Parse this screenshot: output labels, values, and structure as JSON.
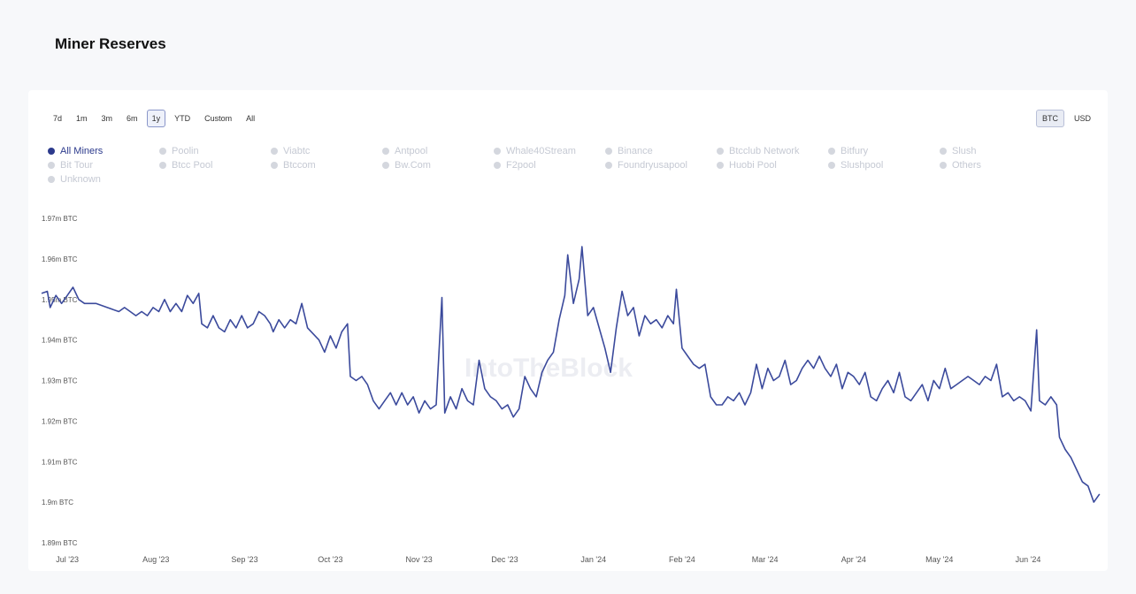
{
  "page": {
    "title": "Miner Reserves"
  },
  "range_buttons": [
    "7d",
    "1m",
    "3m",
    "6m",
    "1y",
    "YTD",
    "Custom",
    "All"
  ],
  "range_selected": "1y",
  "unit_buttons": [
    "BTC",
    "USD"
  ],
  "unit_selected": "BTC",
  "legend": [
    {
      "label": "All Miners",
      "active": true
    },
    {
      "label": "Poolin",
      "active": false
    },
    {
      "label": "Viabtc",
      "active": false
    },
    {
      "label": "Antpool",
      "active": false
    },
    {
      "label": "Whale40Stream",
      "active": false
    },
    {
      "label": "Binance",
      "active": false
    },
    {
      "label": "Btcclub Network",
      "active": false
    },
    {
      "label": "Bitfury",
      "active": false
    },
    {
      "label": "Slush",
      "active": false
    },
    {
      "label": "Bit Tour",
      "active": false
    },
    {
      "label": "Btcc Pool",
      "active": false
    },
    {
      "label": "Btccom",
      "active": false
    },
    {
      "label": "Bw.Com",
      "active": false
    },
    {
      "label": "F2pool",
      "active": false
    },
    {
      "label": "Foundryusapool",
      "active": false
    },
    {
      "label": "Huobi Pool",
      "active": false
    },
    {
      "label": "Slushpool",
      "active": false
    },
    {
      "label": "Others",
      "active": false
    },
    {
      "label": "Unknown",
      "active": false
    }
  ],
  "watermark": "IntoTheBlock",
  "colors": {
    "line": "#3b4a9c",
    "active_legend": "#2c3a8c"
  },
  "chart_data": {
    "type": "line",
    "title": "Miner Reserves",
    "ylim": [
      1.89,
      1.97
    ],
    "y_ticks": [
      {
        "value": 1.97,
        "label": "1.97m BTC"
      },
      {
        "value": 1.96,
        "label": "1.96m BTC"
      },
      {
        "value": 1.95,
        "label": "1.95m BTC"
      },
      {
        "value": 1.94,
        "label": "1.94m BTC"
      },
      {
        "value": 1.93,
        "label": "1.93m BTC"
      },
      {
        "value": 1.92,
        "label": "1.92m BTC"
      },
      {
        "value": 1.91,
        "label": "1.91m BTC"
      },
      {
        "value": 1.9,
        "label": "1.9m BTC"
      },
      {
        "value": 1.89,
        "label": "1.89m BTC"
      }
    ],
    "x_range": [
      "2023-06-22",
      "2024-06-27"
    ],
    "x_ticks": [
      {
        "date": "2023-07-01",
        "label": "Jul '23"
      },
      {
        "date": "2023-08-01",
        "label": "Aug '23"
      },
      {
        "date": "2023-09-01",
        "label": "Sep '23"
      },
      {
        "date": "2023-10-01",
        "label": "Oct '23"
      },
      {
        "date": "2023-11-01",
        "label": "Nov '23"
      },
      {
        "date": "2023-12-01",
        "label": "Dec '23"
      },
      {
        "date": "2024-01-01",
        "label": "Jan '24"
      },
      {
        "date": "2024-02-01",
        "label": "Feb '24"
      },
      {
        "date": "2024-03-01",
        "label": "Mar '24"
      },
      {
        "date": "2024-04-01",
        "label": "Apr '24"
      },
      {
        "date": "2024-05-01",
        "label": "May '24"
      },
      {
        "date": "2024-06-01",
        "label": "Jun '24"
      }
    ],
    "grid": false,
    "series": [
      {
        "name": "All Miners",
        "unit": "m BTC",
        "points": [
          [
            "2023-06-22",
            1.9515
          ],
          [
            "2023-06-24",
            1.952
          ],
          [
            "2023-06-25",
            1.948
          ],
          [
            "2023-06-27",
            1.951
          ],
          [
            "2023-06-29",
            1.949
          ],
          [
            "2023-07-01",
            1.951
          ],
          [
            "2023-07-03",
            1.953
          ],
          [
            "2023-07-05",
            1.95
          ],
          [
            "2023-07-07",
            1.949
          ],
          [
            "2023-07-11",
            1.949
          ],
          [
            "2023-07-15",
            1.948
          ],
          [
            "2023-07-19",
            1.947
          ],
          [
            "2023-07-21",
            1.948
          ],
          [
            "2023-07-23",
            1.947
          ],
          [
            "2023-07-25",
            1.946
          ],
          [
            "2023-07-27",
            1.947
          ],
          [
            "2023-07-29",
            1.946
          ],
          [
            "2023-07-31",
            1.948
          ],
          [
            "2023-08-02",
            1.947
          ],
          [
            "2023-08-04",
            1.95
          ],
          [
            "2023-08-06",
            1.947
          ],
          [
            "2023-08-08",
            1.949
          ],
          [
            "2023-08-10",
            1.947
          ],
          [
            "2023-08-12",
            1.951
          ],
          [
            "2023-08-14",
            1.949
          ],
          [
            "2023-08-16",
            1.9515
          ],
          [
            "2023-08-17",
            1.944
          ],
          [
            "2023-08-19",
            1.943
          ],
          [
            "2023-08-21",
            1.946
          ],
          [
            "2023-08-23",
            1.943
          ],
          [
            "2023-08-25",
            1.942
          ],
          [
            "2023-08-27",
            1.945
          ],
          [
            "2023-08-29",
            1.943
          ],
          [
            "2023-08-31",
            1.946
          ],
          [
            "2023-09-02",
            1.943
          ],
          [
            "2023-09-04",
            1.944
          ],
          [
            "2023-09-06",
            1.947
          ],
          [
            "2023-09-08",
            1.946
          ],
          [
            "2023-09-10",
            1.944
          ],
          [
            "2023-09-11",
            1.942
          ],
          [
            "2023-09-13",
            1.945
          ],
          [
            "2023-09-15",
            1.943
          ],
          [
            "2023-09-17",
            1.945
          ],
          [
            "2023-09-19",
            1.944
          ],
          [
            "2023-09-21",
            1.949
          ],
          [
            "2023-09-23",
            1.943
          ],
          [
            "2023-09-25",
            1.9415
          ],
          [
            "2023-09-27",
            1.94
          ],
          [
            "2023-09-29",
            1.937
          ],
          [
            "2023-10-01",
            1.941
          ],
          [
            "2023-10-03",
            1.938
          ],
          [
            "2023-10-05",
            1.942
          ],
          [
            "2023-10-07",
            1.944
          ],
          [
            "2023-10-08",
            1.931
          ],
          [
            "2023-10-10",
            1.93
          ],
          [
            "2023-10-12",
            1.931
          ],
          [
            "2023-10-14",
            1.929
          ],
          [
            "2023-10-16",
            1.925
          ],
          [
            "2023-10-18",
            1.923
          ],
          [
            "2023-10-20",
            1.925
          ],
          [
            "2023-10-22",
            1.927
          ],
          [
            "2023-10-24",
            1.924
          ],
          [
            "2023-10-26",
            1.927
          ],
          [
            "2023-10-28",
            1.924
          ],
          [
            "2023-10-30",
            1.926
          ],
          [
            "2023-11-01",
            1.922
          ],
          [
            "2023-11-03",
            1.925
          ],
          [
            "2023-11-05",
            1.923
          ],
          [
            "2023-11-07",
            1.924
          ],
          [
            "2023-11-09",
            1.9505
          ],
          [
            "2023-11-10",
            1.922
          ],
          [
            "2023-11-12",
            1.926
          ],
          [
            "2023-11-14",
            1.923
          ],
          [
            "2023-11-16",
            1.928
          ],
          [
            "2023-11-18",
            1.925
          ],
          [
            "2023-11-20",
            1.924
          ],
          [
            "2023-11-22",
            1.935
          ],
          [
            "2023-11-24",
            1.928
          ],
          [
            "2023-11-26",
            1.926
          ],
          [
            "2023-11-28",
            1.925
          ],
          [
            "2023-11-30",
            1.923
          ],
          [
            "2023-12-02",
            1.924
          ],
          [
            "2023-12-04",
            1.921
          ],
          [
            "2023-12-06",
            1.923
          ],
          [
            "2023-12-08",
            1.931
          ],
          [
            "2023-12-10",
            1.928
          ],
          [
            "2023-12-12",
            1.926
          ],
          [
            "2023-12-14",
            1.932
          ],
          [
            "2023-12-16",
            1.935
          ],
          [
            "2023-12-18",
            1.937
          ],
          [
            "2023-12-20",
            1.945
          ],
          [
            "2023-12-22",
            1.951
          ],
          [
            "2023-12-23",
            1.961
          ],
          [
            "2023-12-25",
            1.949
          ],
          [
            "2023-12-27",
            1.955
          ],
          [
            "2023-12-28",
            1.963
          ],
          [
            "2023-12-30",
            1.946
          ],
          [
            "2024-01-01",
            1.948
          ],
          [
            "2024-01-03",
            1.943
          ],
          [
            "2024-01-05",
            1.938
          ],
          [
            "2024-01-07",
            1.932
          ],
          [
            "2024-01-09",
            1.943
          ],
          [
            "2024-01-11",
            1.952
          ],
          [
            "2024-01-13",
            1.946
          ],
          [
            "2024-01-15",
            1.948
          ],
          [
            "2024-01-17",
            1.941
          ],
          [
            "2024-01-19",
            1.946
          ],
          [
            "2024-01-21",
            1.944
          ],
          [
            "2024-01-23",
            1.945
          ],
          [
            "2024-01-25",
            1.943
          ],
          [
            "2024-01-27",
            1.946
          ],
          [
            "2024-01-29",
            1.944
          ],
          [
            "2024-01-30",
            1.9525
          ],
          [
            "2024-02-01",
            1.938
          ],
          [
            "2024-02-03",
            1.936
          ],
          [
            "2024-02-05",
            1.934
          ],
          [
            "2024-02-07",
            1.933
          ],
          [
            "2024-02-09",
            1.934
          ],
          [
            "2024-02-11",
            1.926
          ],
          [
            "2024-02-13",
            1.924
          ],
          [
            "2024-02-15",
            1.924
          ],
          [
            "2024-02-17",
            1.926
          ],
          [
            "2024-02-19",
            1.925
          ],
          [
            "2024-02-21",
            1.927
          ],
          [
            "2024-02-23",
            1.924
          ],
          [
            "2024-02-25",
            1.927
          ],
          [
            "2024-02-27",
            1.934
          ],
          [
            "2024-02-29",
            1.928
          ],
          [
            "2024-03-02",
            1.933
          ],
          [
            "2024-03-04",
            1.93
          ],
          [
            "2024-03-06",
            1.931
          ],
          [
            "2024-03-08",
            1.935
          ],
          [
            "2024-03-10",
            1.929
          ],
          [
            "2024-03-12",
            1.93
          ],
          [
            "2024-03-14",
            1.933
          ],
          [
            "2024-03-16",
            1.935
          ],
          [
            "2024-03-18",
            1.933
          ],
          [
            "2024-03-20",
            1.936
          ],
          [
            "2024-03-22",
            1.933
          ],
          [
            "2024-03-24",
            1.931
          ],
          [
            "2024-03-26",
            1.934
          ],
          [
            "2024-03-28",
            1.928
          ],
          [
            "2024-03-30",
            1.932
          ],
          [
            "2024-04-01",
            1.931
          ],
          [
            "2024-04-03",
            1.929
          ],
          [
            "2024-04-05",
            1.932
          ],
          [
            "2024-04-07",
            1.926
          ],
          [
            "2024-04-09",
            1.925
          ],
          [
            "2024-04-11",
            1.928
          ],
          [
            "2024-04-13",
            1.93
          ],
          [
            "2024-04-15",
            1.927
          ],
          [
            "2024-04-17",
            1.932
          ],
          [
            "2024-04-19",
            1.926
          ],
          [
            "2024-04-21",
            1.925
          ],
          [
            "2024-04-23",
            1.927
          ],
          [
            "2024-04-25",
            1.929
          ],
          [
            "2024-04-27",
            1.925
          ],
          [
            "2024-04-29",
            1.93
          ],
          [
            "2024-05-01",
            1.928
          ],
          [
            "2024-05-03",
            1.933
          ],
          [
            "2024-05-05",
            1.928
          ],
          [
            "2024-05-07",
            1.929
          ],
          [
            "2024-05-09",
            1.93
          ],
          [
            "2024-05-11",
            1.931
          ],
          [
            "2024-05-13",
            1.93
          ],
          [
            "2024-05-15",
            1.929
          ],
          [
            "2024-05-17",
            1.931
          ],
          [
            "2024-05-19",
            1.93
          ],
          [
            "2024-05-21",
            1.934
          ],
          [
            "2024-05-23",
            1.926
          ],
          [
            "2024-05-25",
            1.927
          ],
          [
            "2024-05-27",
            1.925
          ],
          [
            "2024-05-29",
            1.926
          ],
          [
            "2024-05-31",
            1.925
          ],
          [
            "2024-06-02",
            1.9225
          ],
          [
            "2024-06-04",
            1.9425
          ],
          [
            "2024-06-05",
            1.925
          ],
          [
            "2024-06-07",
            1.924
          ],
          [
            "2024-06-09",
            1.926
          ],
          [
            "2024-06-11",
            1.924
          ],
          [
            "2024-06-12",
            1.916
          ],
          [
            "2024-06-14",
            1.913
          ],
          [
            "2024-06-16",
            1.911
          ],
          [
            "2024-06-18",
            1.908
          ],
          [
            "2024-06-20",
            1.905
          ],
          [
            "2024-06-22",
            1.904
          ],
          [
            "2024-06-24",
            1.9
          ],
          [
            "2024-06-26",
            1.902
          ]
        ]
      }
    ]
  }
}
